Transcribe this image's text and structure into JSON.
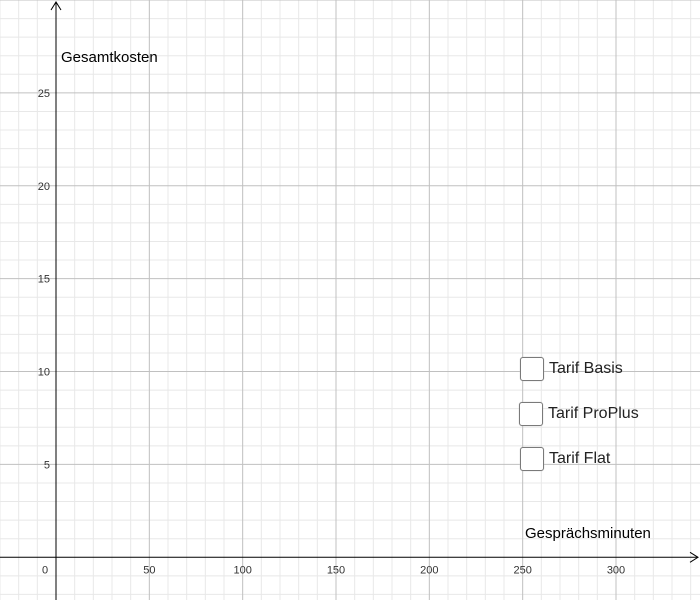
{
  "chart_data": {
    "type": "line",
    "title": "",
    "xlabel": "Gesprächsminuten",
    "ylabel": "Gesamtkosten",
    "xlim": [
      -30,
      345
    ],
    "ylim": [
      -2.3,
      30
    ],
    "x_ticks": [
      0,
      50,
      100,
      150,
      200,
      250,
      300
    ],
    "y_ticks": [
      5,
      10,
      15,
      20,
      25
    ],
    "x_major_step": 50,
    "x_minor_step": 10,
    "y_major_step": 5,
    "y_minor_step": 1,
    "grid": true,
    "series": []
  },
  "controls": {
    "checkboxes": [
      {
        "label": "Tarif Basis",
        "checked": false
      },
      {
        "label": "Tarif ProPlus",
        "checked": false
      },
      {
        "label": "Tarif Flat",
        "checked": false
      }
    ]
  },
  "colors": {
    "grid_major": "#c0c0c0",
    "grid_minor": "#e8e8e8",
    "axis": "#000000"
  }
}
